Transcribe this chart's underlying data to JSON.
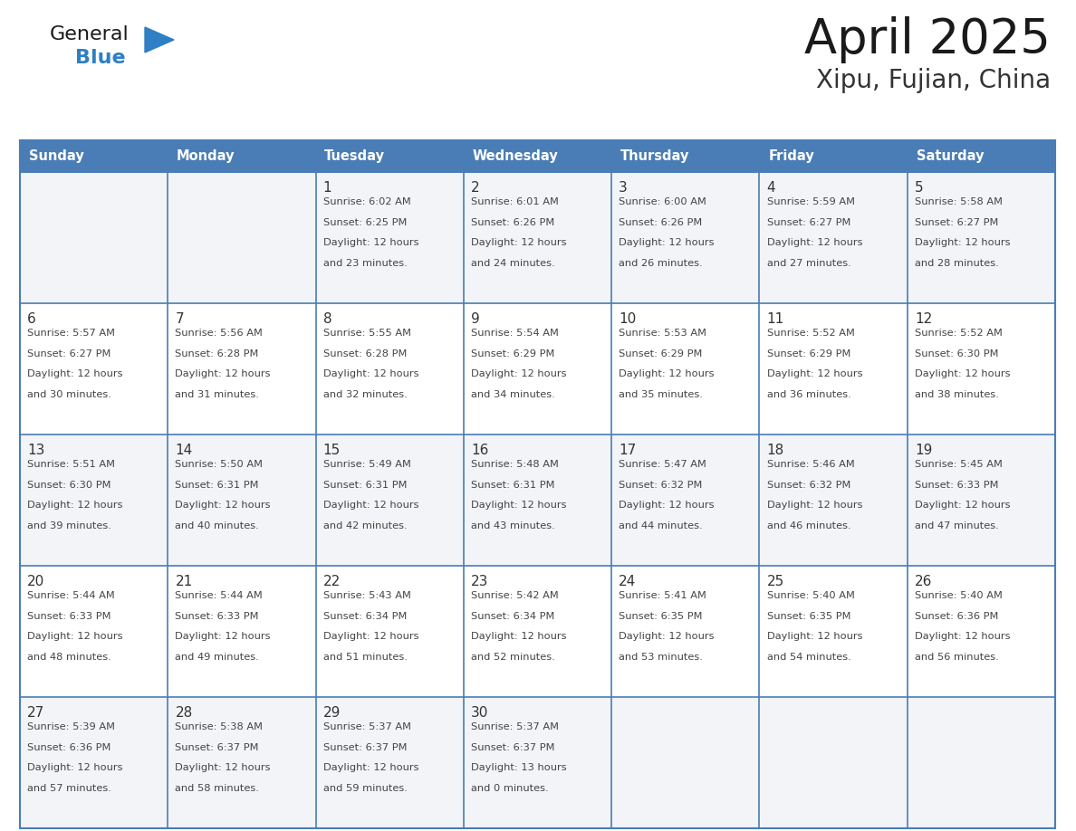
{
  "title": "April 2025",
  "subtitle": "Xipu, Fujian, China",
  "days_of_week": [
    "Sunday",
    "Monday",
    "Tuesday",
    "Wednesday",
    "Thursday",
    "Friday",
    "Saturday"
  ],
  "header_bg": "#4a7db5",
  "header_text": "#ffffff",
  "cell_bg_odd": "#f2f4f7",
  "cell_bg_even": "#ffffff",
  "cell_border_color": "#4a7db5",
  "row_divider_color": "#4a7db5",
  "day_number_color": "#333333",
  "cell_text_color": "#444444",
  "title_color": "#1a1a1a",
  "subtitle_color": "#333333",
  "logo_general_color": "#1a1a1a",
  "logo_blue_color": "#2e7fc4",
  "logo_triangle_color": "#2e7fc4",
  "calendar_data": [
    [
      {
        "day": null,
        "sunrise": null,
        "sunset": null,
        "daylight": null
      },
      {
        "day": null,
        "sunrise": null,
        "sunset": null,
        "daylight": null
      },
      {
        "day": 1,
        "sunrise": "6:02 AM",
        "sunset": "6:25 PM",
        "daylight": "12 hours and 23 minutes."
      },
      {
        "day": 2,
        "sunrise": "6:01 AM",
        "sunset": "6:26 PM",
        "daylight": "12 hours and 24 minutes."
      },
      {
        "day": 3,
        "sunrise": "6:00 AM",
        "sunset": "6:26 PM",
        "daylight": "12 hours and 26 minutes."
      },
      {
        "day": 4,
        "sunrise": "5:59 AM",
        "sunset": "6:27 PM",
        "daylight": "12 hours and 27 minutes."
      },
      {
        "day": 5,
        "sunrise": "5:58 AM",
        "sunset": "6:27 PM",
        "daylight": "12 hours and 28 minutes."
      }
    ],
    [
      {
        "day": 6,
        "sunrise": "5:57 AM",
        "sunset": "6:27 PM",
        "daylight": "12 hours and 30 minutes."
      },
      {
        "day": 7,
        "sunrise": "5:56 AM",
        "sunset": "6:28 PM",
        "daylight": "12 hours and 31 minutes."
      },
      {
        "day": 8,
        "sunrise": "5:55 AM",
        "sunset": "6:28 PM",
        "daylight": "12 hours and 32 minutes."
      },
      {
        "day": 9,
        "sunrise": "5:54 AM",
        "sunset": "6:29 PM",
        "daylight": "12 hours and 34 minutes."
      },
      {
        "day": 10,
        "sunrise": "5:53 AM",
        "sunset": "6:29 PM",
        "daylight": "12 hours and 35 minutes."
      },
      {
        "day": 11,
        "sunrise": "5:52 AM",
        "sunset": "6:29 PM",
        "daylight": "12 hours and 36 minutes."
      },
      {
        "day": 12,
        "sunrise": "5:52 AM",
        "sunset": "6:30 PM",
        "daylight": "12 hours and 38 minutes."
      }
    ],
    [
      {
        "day": 13,
        "sunrise": "5:51 AM",
        "sunset": "6:30 PM",
        "daylight": "12 hours and 39 minutes."
      },
      {
        "day": 14,
        "sunrise": "5:50 AM",
        "sunset": "6:31 PM",
        "daylight": "12 hours and 40 minutes."
      },
      {
        "day": 15,
        "sunrise": "5:49 AM",
        "sunset": "6:31 PM",
        "daylight": "12 hours and 42 minutes."
      },
      {
        "day": 16,
        "sunrise": "5:48 AM",
        "sunset": "6:31 PM",
        "daylight": "12 hours and 43 minutes."
      },
      {
        "day": 17,
        "sunrise": "5:47 AM",
        "sunset": "6:32 PM",
        "daylight": "12 hours and 44 minutes."
      },
      {
        "day": 18,
        "sunrise": "5:46 AM",
        "sunset": "6:32 PM",
        "daylight": "12 hours and 46 minutes."
      },
      {
        "day": 19,
        "sunrise": "5:45 AM",
        "sunset": "6:33 PM",
        "daylight": "12 hours and 47 minutes."
      }
    ],
    [
      {
        "day": 20,
        "sunrise": "5:44 AM",
        "sunset": "6:33 PM",
        "daylight": "12 hours and 48 minutes."
      },
      {
        "day": 21,
        "sunrise": "5:44 AM",
        "sunset": "6:33 PM",
        "daylight": "12 hours and 49 minutes."
      },
      {
        "day": 22,
        "sunrise": "5:43 AM",
        "sunset": "6:34 PM",
        "daylight": "12 hours and 51 minutes."
      },
      {
        "day": 23,
        "sunrise": "5:42 AM",
        "sunset": "6:34 PM",
        "daylight": "12 hours and 52 minutes."
      },
      {
        "day": 24,
        "sunrise": "5:41 AM",
        "sunset": "6:35 PM",
        "daylight": "12 hours and 53 minutes."
      },
      {
        "day": 25,
        "sunrise": "5:40 AM",
        "sunset": "6:35 PM",
        "daylight": "12 hours and 54 minutes."
      },
      {
        "day": 26,
        "sunrise": "5:40 AM",
        "sunset": "6:36 PM",
        "daylight": "12 hours and 56 minutes."
      }
    ],
    [
      {
        "day": 27,
        "sunrise": "5:39 AM",
        "sunset": "6:36 PM",
        "daylight": "12 hours and 57 minutes."
      },
      {
        "day": 28,
        "sunrise": "5:38 AM",
        "sunset": "6:37 PM",
        "daylight": "12 hours and 58 minutes."
      },
      {
        "day": 29,
        "sunrise": "5:37 AM",
        "sunset": "6:37 PM",
        "daylight": "12 hours and 59 minutes."
      },
      {
        "day": 30,
        "sunrise": "5:37 AM",
        "sunset": "6:37 PM",
        "daylight": "13 hours and 0 minutes."
      },
      {
        "day": null,
        "sunrise": null,
        "sunset": null,
        "daylight": null
      },
      {
        "day": null,
        "sunrise": null,
        "sunset": null,
        "daylight": null
      },
      {
        "day": null,
        "sunrise": null,
        "sunset": null,
        "daylight": null
      }
    ]
  ]
}
